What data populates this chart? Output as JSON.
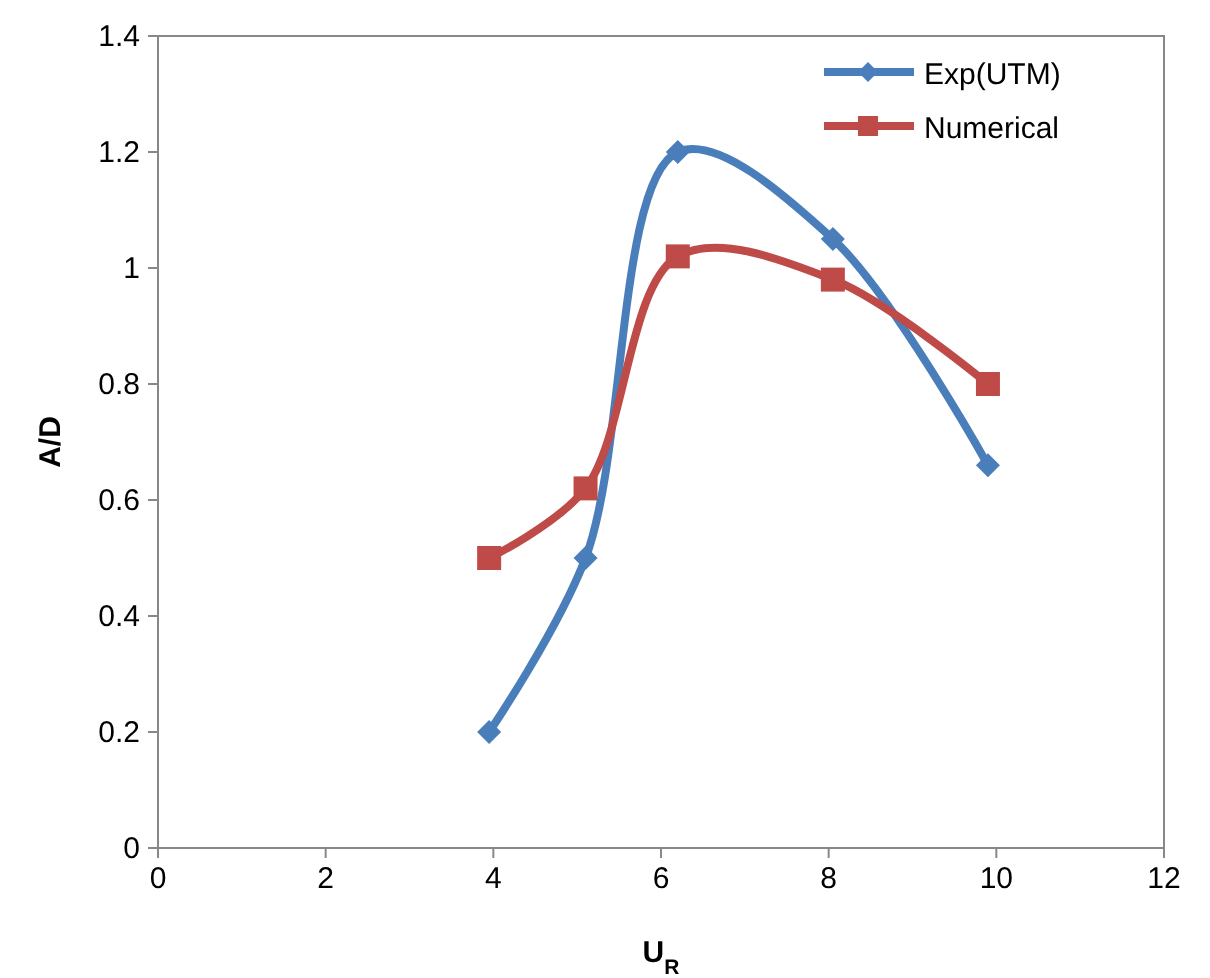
{
  "chart_data": {
    "type": "line",
    "xlabel": "U$_{R}$",
    "ylabel": "A/D",
    "xlim": [
      0,
      12
    ],
    "xticks": [
      0,
      2,
      4,
      6,
      8,
      10,
      12
    ],
    "ylim": [
      0,
      1.4
    ],
    "yticks": [
      0,
      0.2,
      0.4,
      0.6,
      0.8,
      1,
      1.2,
      1.4
    ],
    "grid": false,
    "legend": "top right",
    "x": [
      3.95,
      5.1,
      6.2,
      8.05,
      9.9
    ],
    "series": [
      {
        "name": "Exp(UTM)",
        "color": "#4a7ebb",
        "marker": "diamond",
        "values": [
          0.2,
          0.5,
          1.2,
          1.05,
          0.66
        ]
      },
      {
        "name": "Numerical",
        "color": "#be4b48",
        "marker": "square",
        "values": [
          0.5,
          0.62,
          1.02,
          0.98,
          0.8
        ]
      }
    ]
  }
}
